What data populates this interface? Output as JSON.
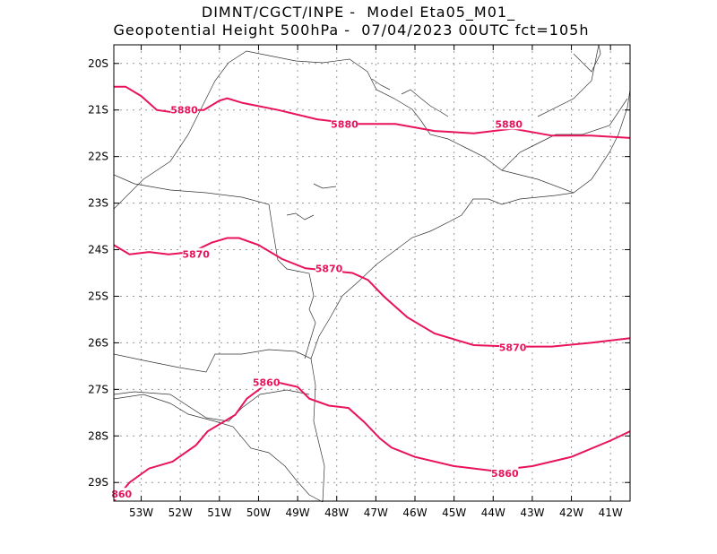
{
  "header": {
    "line1": "DIMNT/CGCT/INPE -  Model Eta05_M01_",
    "line2": "Geopotential Height 500hPa -  07/04/2023 00UTC fct=105h"
  },
  "axes": {
    "lat_labels": [
      "20S",
      "21S",
      "22S",
      "23S",
      "24S",
      "25S",
      "26S",
      "27S",
      "28S",
      "29S"
    ],
    "lon_labels": [
      "53W",
      "52W",
      "51W",
      "50W",
      "49W",
      "48W",
      "47W",
      "46W",
      "45W",
      "44W",
      "43W",
      "42W",
      "41W"
    ]
  },
  "colors": {
    "contour": "#e8135a",
    "coast": "#333333",
    "grid": "#999999"
  },
  "chart_data": {
    "type": "contour_map",
    "field": "Geopotential Height 500hPa",
    "lat_range": [
      "29.4S",
      "19.6S"
    ],
    "lon_range": [
      "53.7W",
      "40.5W"
    ],
    "grid": true,
    "contours": [
      {
        "label": "5880",
        "points": [
          [
            -53.7,
            -20.5
          ],
          [
            -53.4,
            -20.5
          ],
          [
            -53.0,
            -20.7
          ],
          [
            -52.6,
            -21.0
          ],
          [
            -52.2,
            -21.05
          ],
          [
            -51.8,
            -21.0
          ],
          [
            -51.4,
            -21.0
          ],
          [
            -51.0,
            -20.8
          ],
          [
            -50.8,
            -20.75
          ],
          [
            -50.4,
            -20.85
          ],
          [
            -49.5,
            -21.0
          ],
          [
            -48.5,
            -21.2
          ],
          [
            -47.5,
            -21.3
          ],
          [
            -46.5,
            -21.3
          ],
          [
            -45.5,
            -21.45
          ],
          [
            -44.5,
            -21.5
          ],
          [
            -43.5,
            -21.4
          ],
          [
            -42.5,
            -21.55
          ],
          [
            -41.5,
            -21.55
          ],
          [
            -40.5,
            -21.6
          ]
        ]
      },
      {
        "label": "5870",
        "points": [
          [
            -53.7,
            -23.9
          ],
          [
            -53.3,
            -24.1
          ],
          [
            -52.8,
            -24.05
          ],
          [
            -52.3,
            -24.1
          ],
          [
            -51.7,
            -24.05
          ],
          [
            -51.2,
            -23.85
          ],
          [
            -50.8,
            -23.75
          ],
          [
            -50.5,
            -23.75
          ],
          [
            -50.0,
            -23.9
          ],
          [
            -49.4,
            -24.2
          ],
          [
            -48.8,
            -24.4
          ],
          [
            -48.2,
            -24.45
          ],
          [
            -47.6,
            -24.5
          ],
          [
            -47.2,
            -24.65
          ],
          [
            -46.8,
            -25.0
          ],
          [
            -46.2,
            -25.45
          ],
          [
            -45.5,
            -25.8
          ],
          [
            -44.5,
            -26.05
          ],
          [
            -43.5,
            -26.08
          ],
          [
            -42.5,
            -26.08
          ],
          [
            -41.5,
            -26.0
          ],
          [
            -40.5,
            -25.9
          ]
        ]
      },
      {
        "label": "5860",
        "points": [
          [
            -53.7,
            -29.4
          ],
          [
            -53.3,
            -29.0
          ],
          [
            -52.8,
            -28.7
          ],
          [
            -52.2,
            -28.55
          ],
          [
            -51.6,
            -28.2
          ],
          [
            -51.3,
            -27.9
          ],
          [
            -51.0,
            -27.75
          ],
          [
            -50.6,
            -27.55
          ],
          [
            -50.3,
            -27.2
          ],
          [
            -49.9,
            -26.95
          ],
          [
            -49.5,
            -26.85
          ],
          [
            -49.0,
            -26.95
          ],
          [
            -48.7,
            -27.2
          ],
          [
            -48.2,
            -27.35
          ],
          [
            -47.7,
            -27.4
          ],
          [
            -47.3,
            -27.7
          ],
          [
            -46.9,
            -28.05
          ],
          [
            -46.6,
            -28.25
          ],
          [
            -46.0,
            -28.45
          ],
          [
            -45.0,
            -28.65
          ],
          [
            -44.0,
            -28.75
          ],
          [
            -43.0,
            -28.65
          ],
          [
            -42.0,
            -28.45
          ],
          [
            -41.0,
            -28.1
          ],
          [
            -40.5,
            -27.9
          ]
        ]
      }
    ],
    "contour_labels": [
      {
        "text": "5880",
        "lon": -51.9,
        "lat": -21.0
      },
      {
        "text": "5880",
        "lon": -47.8,
        "lat": -21.3
      },
      {
        "text": "5880",
        "lon": -43.6,
        "lat": -21.3
      },
      {
        "text": "5870",
        "lon": -51.6,
        "lat": -24.1
      },
      {
        "text": "5870",
        "lon": -48.2,
        "lat": -24.4
      },
      {
        "text": "5870",
        "lon": -43.5,
        "lat": -26.1
      },
      {
        "text": "5860",
        "lon": -49.8,
        "lat": -26.85
      },
      {
        "text": "5860",
        "lon": -43.7,
        "lat": -28.8
      },
      {
        "text": "860",
        "lon": -53.5,
        "lat": -29.25
      }
    ]
  }
}
